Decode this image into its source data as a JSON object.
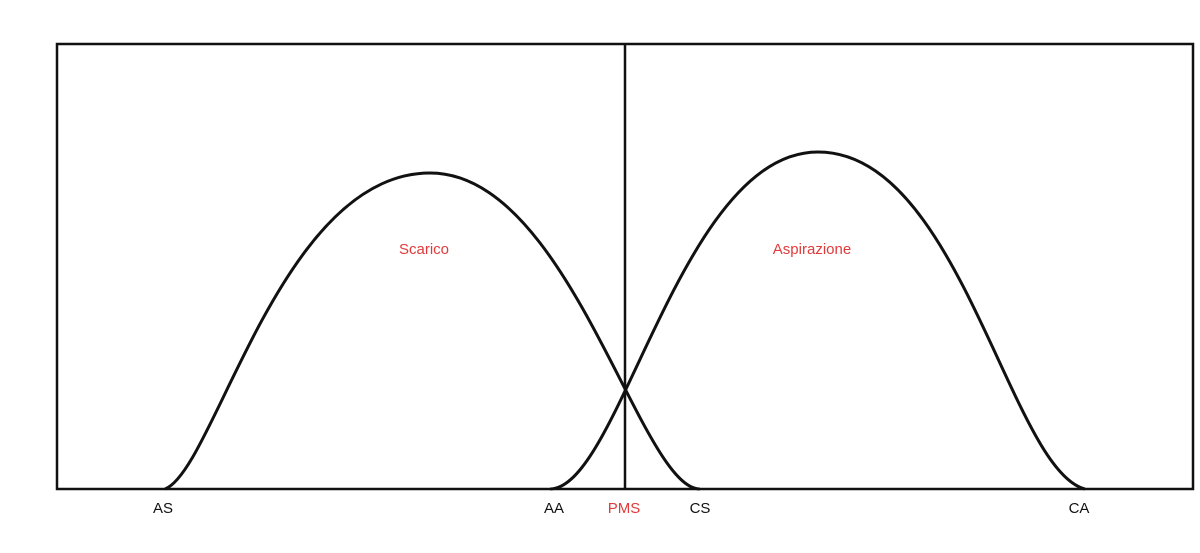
{
  "curves": {
    "exhaust": "Scarico",
    "intake": "Aspirazione"
  },
  "markers": [
    "AS",
    "AA",
    "PMS",
    "CS",
    "CA"
  ]
}
